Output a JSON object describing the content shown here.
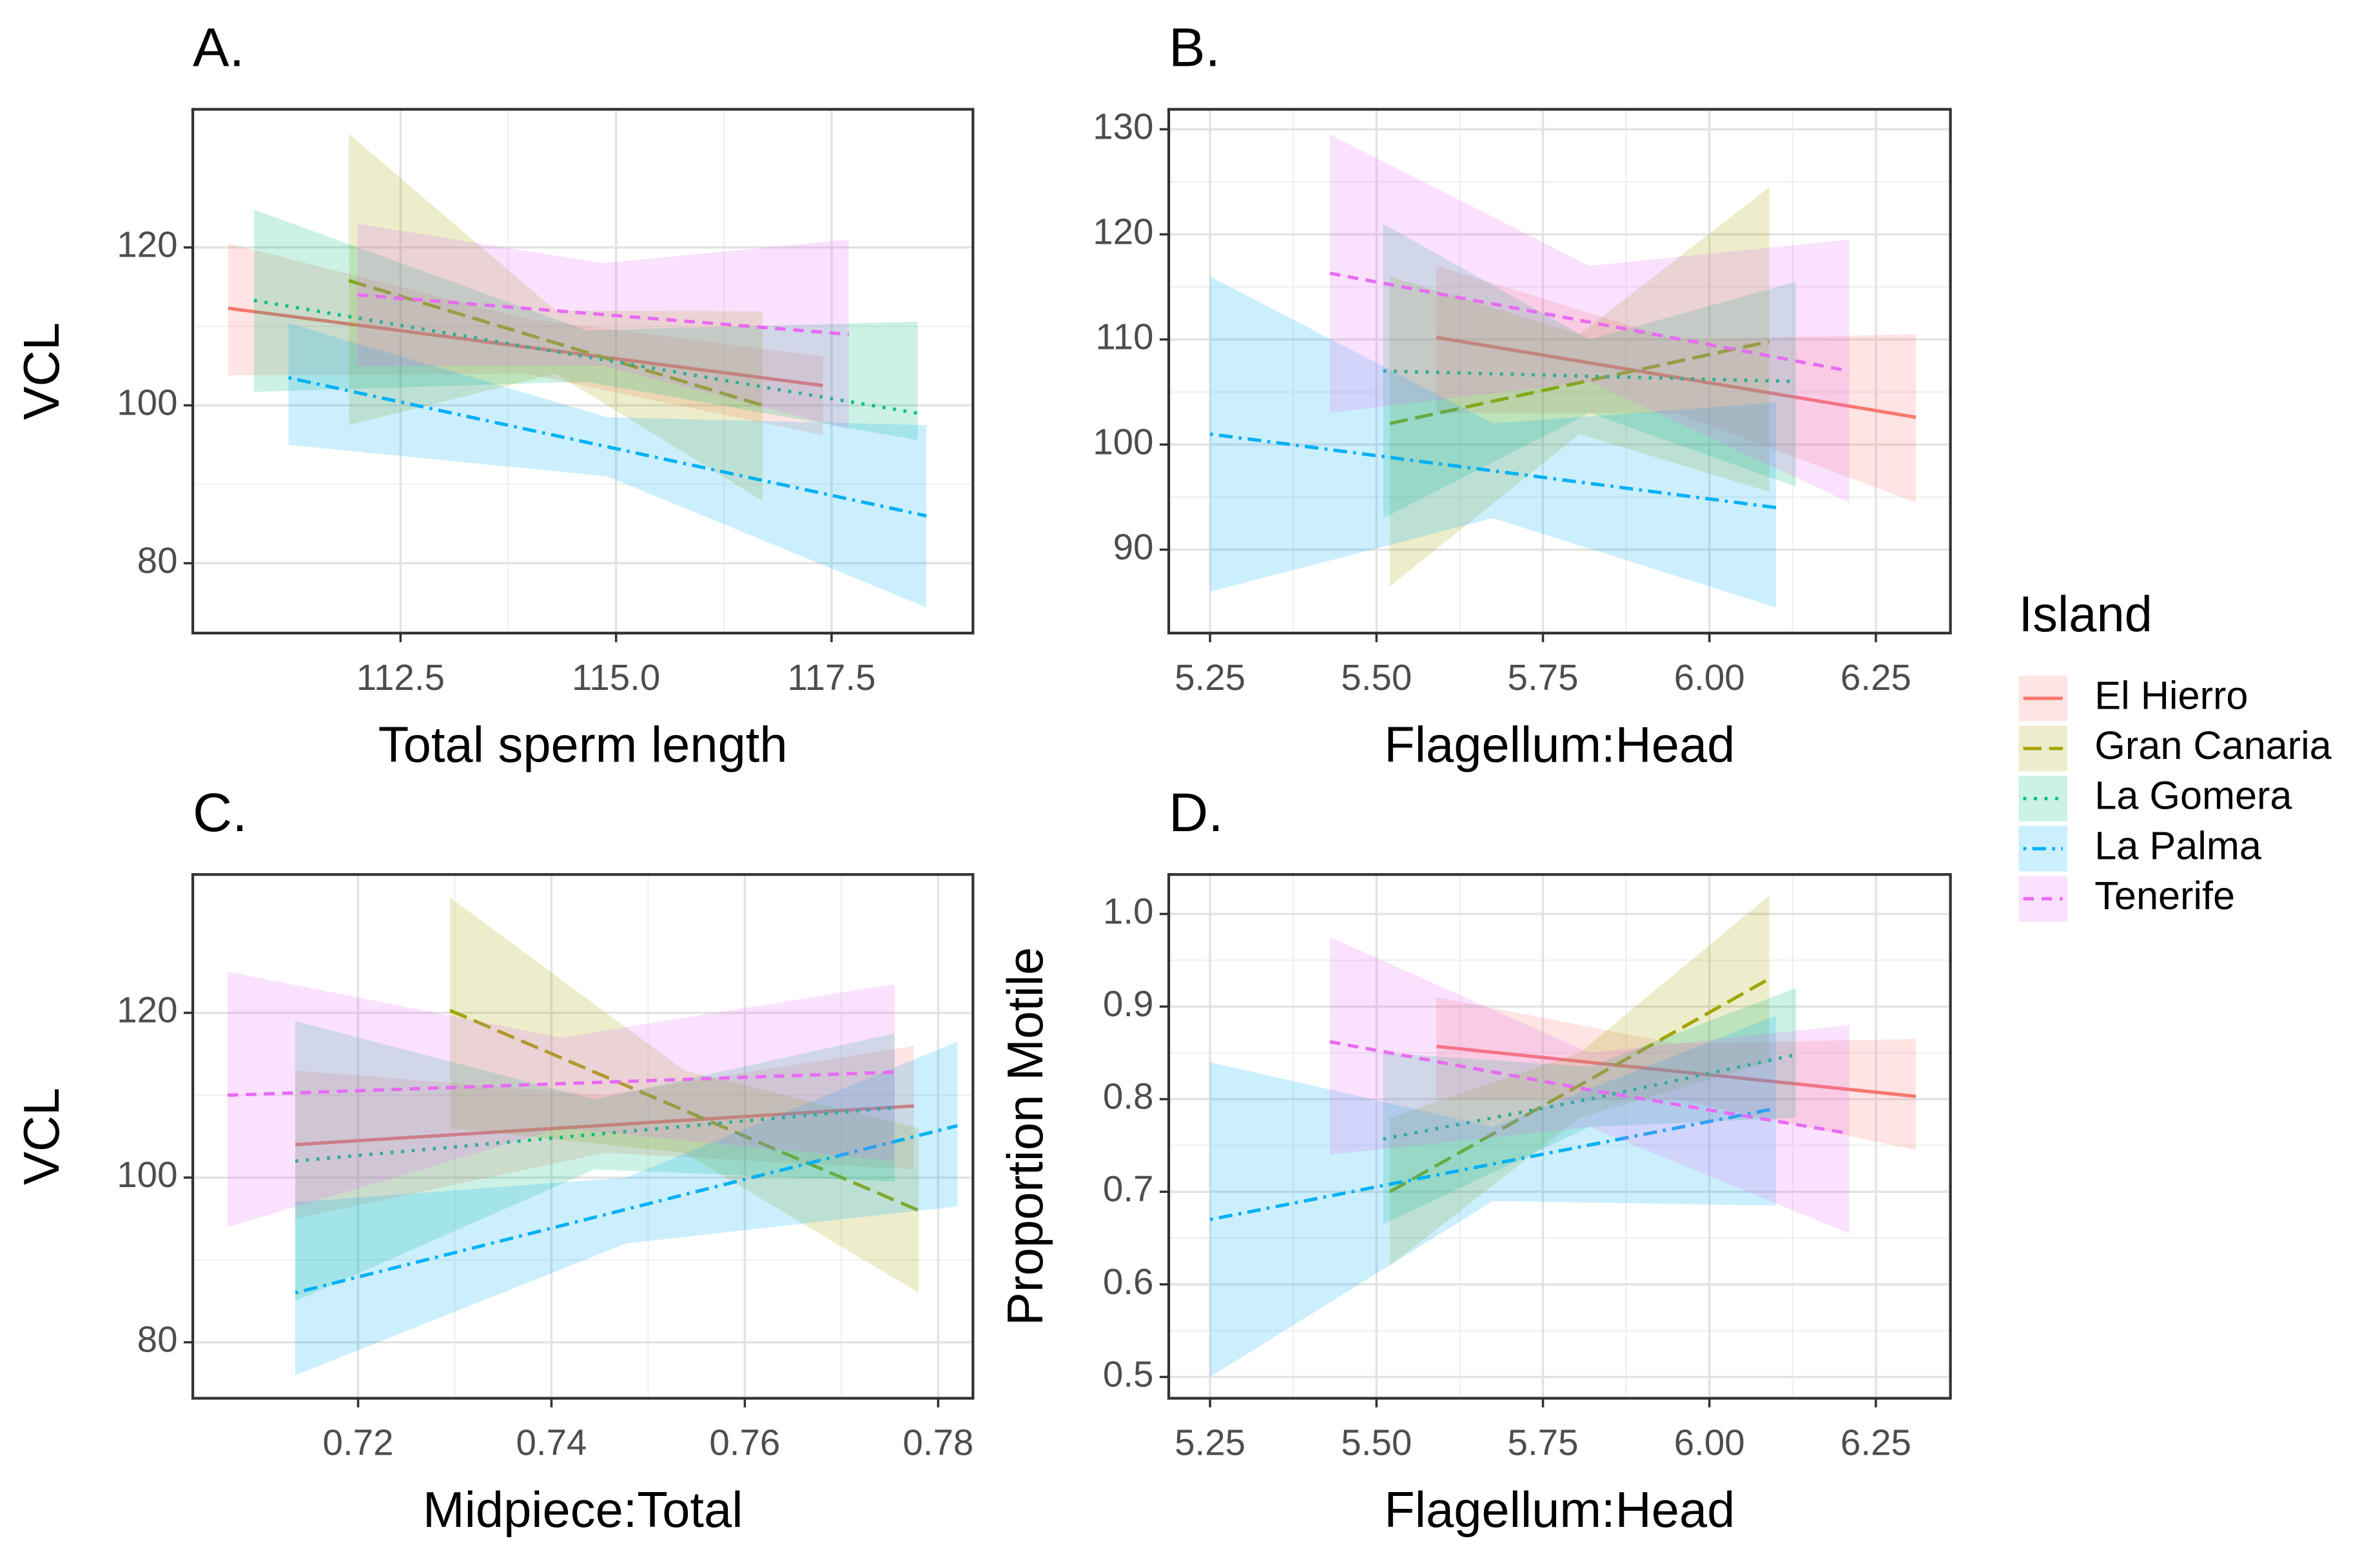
{
  "legend": {
    "title": "Island",
    "entries": [
      {
        "name": "El Hierro",
        "color": "#F8766D",
        "linetype": "solid"
      },
      {
        "name": "Gran Canaria",
        "color": "#A3A500",
        "linetype": "longdash"
      },
      {
        "name": "La Gomera",
        "color": "#00BF7D",
        "linetype": "dotted"
      },
      {
        "name": "La Palma",
        "color": "#00B0F6",
        "linetype": "dotdash"
      },
      {
        "name": "Tenerife",
        "color": "#E76BF3",
        "linetype": "dashed"
      }
    ]
  },
  "chart_data": [
    {
      "type": "line",
      "title": "A.",
      "xlabel": "Total sperm length",
      "ylabel": "VCL",
      "grid": true,
      "xlim": [
        110.09,
        119.14
      ],
      "ylim": [
        71.15,
        137.5
      ],
      "xticks": [
        112.5,
        {
          "value": 115,
          "label": "115.0"
        },
        117.5
      ],
      "yticks": [
        80,
        100,
        120
      ],
      "series": [
        {
          "x": [
            110.5,
            113.95,
            117.4
          ],
          "values": [
            112.3,
            107.4,
            102.5
          ],
          "lower": [
            103.8,
            104,
            96.2
          ],
          "upper": [
            120.5,
            111,
            106.2
          ]
        },
        {
          "x": [
            111.9,
            114.3,
            116.7
          ],
          "values": [
            115.8,
            107.9,
            100
          ],
          "lower": [
            97.5,
            104,
            87.9
          ],
          "upper": [
            134.4,
            112,
            111.9
          ]
        },
        {
          "x": [
            110.8,
            114.65,
            118.5
          ],
          "values": [
            113.3,
            106.15,
            99
          ],
          "lower": [
            101.7,
            103,
            95.6
          ],
          "upper": [
            124.8,
            109.5,
            110.6
          ]
        },
        {
          "x": [
            111.2,
            114.9,
            118.6
          ],
          "values": [
            103.5,
            94.75,
            86
          ],
          "lower": [
            95,
            91,
            74.4
          ],
          "upper": [
            110.4,
            98.5,
            97.5
          ]
        },
        {
          "x": [
            112.0,
            114.85,
            117.7
          ],
          "values": [
            114,
            111.5,
            109
          ],
          "lower": [
            105,
            105,
            97
          ],
          "upper": [
            123,
            118,
            121
          ]
        }
      ]
    },
    {
      "type": "line",
      "title": "B.",
      "xlabel": "Flagellum:Head",
      "ylabel": "VCL",
      "grid": true,
      "xlim": [
        5.188,
        6.362
      ],
      "ylim": [
        82.06,
        131.9
      ],
      "xticks": [
        5.25,
        {
          "value": 5.5,
          "label": "5.50"
        },
        5.75,
        {
          "value": 6,
          "label": "6.00"
        },
        6.25
      ],
      "yticks": [
        90,
        100,
        110,
        120,
        130
      ],
      "series": [
        {
          "x": [
            5.59,
            5.95,
            6.31
          ],
          "values": [
            110.2,
            106.4,
            102.6
          ],
          "lower": [
            103,
            103,
            94.5
          ],
          "upper": [
            117,
            110,
            110.5
          ]
        },
        {
          "x": [
            5.52,
            5.805,
            6.09
          ],
          "values": [
            102,
            105.9,
            109.8
          ],
          "lower": [
            86.5,
            101,
            95.5
          ],
          "upper": [
            116,
            110.5,
            124.5
          ]
        },
        {
          "x": [
            5.51,
            5.82,
            6.13
          ],
          "values": [
            107,
            106.5,
            106
          ],
          "lower": [
            93,
            103,
            96
          ],
          "upper": [
            121,
            110,
            115.5
          ]
        },
        {
          "x": [
            5.25,
            5.675,
            6.1
          ],
          "values": [
            101,
            97.5,
            94
          ],
          "lower": [
            86,
            93,
            84.5
          ],
          "upper": [
            116,
            102,
            104
          ]
        },
        {
          "x": [
            5.43,
            5.82,
            6.21
          ],
          "values": [
            116.3,
            111.65,
            107
          ],
          "lower": [
            103,
            106,
            94.5
          ],
          "upper": [
            129.5,
            117,
            119.5
          ]
        }
      ]
    },
    {
      "type": "line",
      "title": "C.",
      "xlabel": "Midpiece:Total",
      "ylabel": "VCL",
      "grid": true,
      "xlim": [
        0.7029,
        0.7836
      ],
      "ylim": [
        73.2,
        136.8
      ],
      "xticks": [
        0.72,
        0.74,
        0.76,
        0.78
      ],
      "yticks": [
        80,
        100,
        120
      ],
      "series": [
        {
          "x": [
            0.7135,
            0.7455,
            0.7775
          ],
          "values": [
            104,
            106.35,
            108.7
          ],
          "lower": [
            95,
            103,
            101
          ],
          "upper": [
            113,
            110,
            116
          ]
        },
        {
          "x": [
            0.7295,
            0.75375,
            0.778
          ],
          "values": [
            120.3,
            108.15,
            96
          ],
          "lower": [
            106,
            103,
            86
          ],
          "upper": [
            134,
            113,
            106
          ]
        },
        {
          "x": [
            0.7135,
            0.7445,
            0.7755
          ],
          "values": [
            102,
            105.25,
            108.5
          ],
          "lower": [
            85,
            101,
            99.5
          ],
          "upper": [
            119,
            109.5,
            117.5
          ]
        },
        {
          "x": [
            0.7135,
            0.74775,
            0.782
          ],
          "values": [
            86,
            96.15,
            106.3
          ],
          "lower": [
            76,
            92,
            96.5
          ],
          "upper": [
            97,
            100,
            116.5
          ]
        },
        {
          "x": [
            0.7065,
            0.741,
            0.7755
          ],
          "values": [
            110,
            111.4,
            112.8
          ],
          "lower": [
            94,
            106,
            102
          ],
          "upper": [
            125,
            117,
            123.5
          ]
        }
      ]
    },
    {
      "type": "line",
      "title": "D.",
      "xlabel": "Flagellum:Head",
      "ylabel": "Proportion Motile",
      "grid": true,
      "xlim": [
        5.188,
        6.362
      ],
      "ylim": [
        0.477,
        1.0426
      ],
      "xticks": [
        5.25,
        {
          "value": 5.5,
          "label": "5.50"
        },
        5.75,
        {
          "value": 6,
          "label": "6.00"
        },
        6.25
      ],
      "yticks": [
        0.5,
        0.6,
        0.7,
        0.8,
        0.9,
        {
          "value": 1,
          "label": "1.0"
        }
      ],
      "series": [
        {
          "x": [
            5.59,
            5.95,
            6.31
          ],
          "values": [
            0.857,
            0.83,
            0.803
          ],
          "lower": [
            0.8,
            0.8,
            0.745
          ],
          "upper": [
            0.91,
            0.86,
            0.865
          ]
        },
        {
          "x": [
            5.52,
            5.805,
            6.09
          ],
          "values": [
            0.7,
            0.815,
            0.93
          ],
          "lower": [
            0.62,
            0.78,
            0.84
          ],
          "upper": [
            0.78,
            0.85,
            1.02
          ]
        },
        {
          "x": [
            5.51,
            5.82,
            6.13
          ],
          "values": [
            0.757,
            0.8,
            0.848
          ],
          "lower": [
            0.665,
            0.77,
            0.78
          ],
          "upper": [
            0.85,
            0.835,
            0.92
          ]
        },
        {
          "x": [
            5.25,
            5.675,
            6.1
          ],
          "values": [
            0.67,
            0.73,
            0.79
          ],
          "lower": [
            0.5,
            0.69,
            0.685
          ],
          "upper": [
            0.84,
            0.77,
            0.89
          ]
        },
        {
          "x": [
            5.43,
            5.82,
            6.21
          ],
          "values": [
            0.862,
            0.81,
            0.763
          ],
          "lower": [
            0.74,
            0.77,
            0.655
          ],
          "upper": [
            0.975,
            0.85,
            0.88
          ]
        }
      ]
    }
  ]
}
